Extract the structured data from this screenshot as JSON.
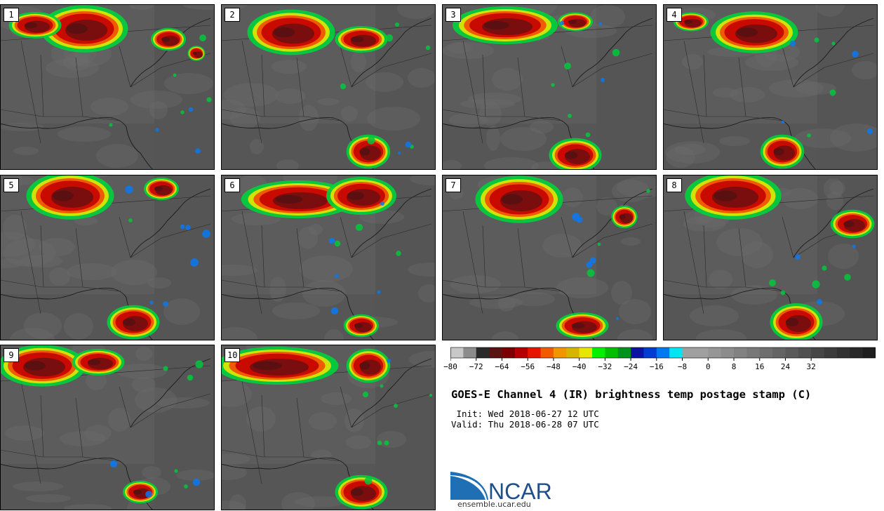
{
  "panels": [
    {
      "label": "1"
    },
    {
      "label": "2"
    },
    {
      "label": "3"
    },
    {
      "label": "4"
    },
    {
      "label": "5"
    },
    {
      "label": "6"
    },
    {
      "label": "7"
    },
    {
      "label": "8"
    },
    {
      "label": "9"
    },
    {
      "label": "10"
    }
  ],
  "colorbar": {
    "ticks": [
      "−80",
      "−72",
      "−64",
      "−56",
      "−48",
      "−40",
      "−32",
      "−24",
      "−16",
      "−8",
      "0",
      "8",
      "16",
      "24",
      "32"
    ],
    "colors": [
      "#c8c8c8",
      "#8c8c8c",
      "#2a2a2a",
      "#5a1212",
      "#7a0000",
      "#b40000",
      "#e61400",
      "#f05a00",
      "#f09600",
      "#d7b400",
      "#e6e600",
      "#00f000",
      "#00be00",
      "#00911e",
      "#0a14a0",
      "#003cd2",
      "#0078f0",
      "#00e6f0",
      "#a0a0a0",
      "#a0a0a0",
      "#969696",
      "#8c8c8c",
      "#828282",
      "#787878",
      "#6e6e6e",
      "#646464",
      "#5a5a5a",
      "#505050",
      "#464646",
      "#3c3c3c",
      "#323232",
      "#282828",
      "#1e1e1e"
    ]
  },
  "title": "GOES-E Channel 4 (IR) brightness temp postage stamp (C)",
  "init": " Init: Wed 2018-06-27 12 UTC",
  "valid": "Valid: Thu 2018-06-28 07 UTC",
  "logo": {
    "text": "NCAR",
    "url": "ensemble.ucar.edu"
  }
}
